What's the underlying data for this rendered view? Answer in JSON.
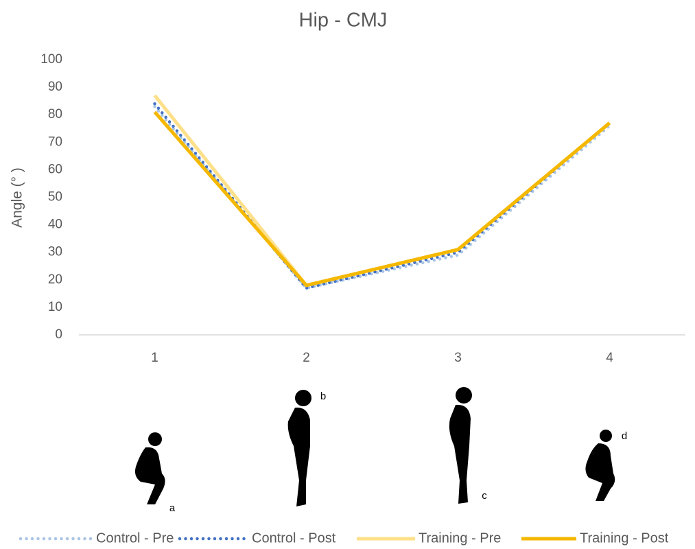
{
  "chart_data": {
    "type": "line",
    "title": "Hip - CMJ",
    "y_label": "Angle (° )",
    "categories": [
      "1",
      "2",
      "3",
      "4"
    ],
    "series": [
      {
        "name": "Control - Pre",
        "color": "#a9c4e4",
        "style": "dotted",
        "values": [
          83,
          17,
          29,
          76
        ]
      },
      {
        "name": "Control - Post",
        "color": "#4472c4",
        "style": "dotted",
        "values": [
          84,
          17,
          30,
          77
        ]
      },
      {
        "name": "Training - Pre",
        "color": "#ffe08a",
        "style": "solid",
        "values": [
          87,
          18,
          31,
          77
        ]
      },
      {
        "name": "Training - Post",
        "color": "#f5b800",
        "style": "solid",
        "values": [
          81,
          18,
          31,
          77
        ]
      }
    ],
    "ylim": [
      0,
      100
    ],
    "yticks": [
      0,
      10,
      20,
      30,
      40,
      50,
      60,
      70,
      80,
      90,
      100
    ],
    "grid": false,
    "legend": "bottom",
    "annotations": [
      "a",
      "b",
      "c",
      "d"
    ]
  }
}
